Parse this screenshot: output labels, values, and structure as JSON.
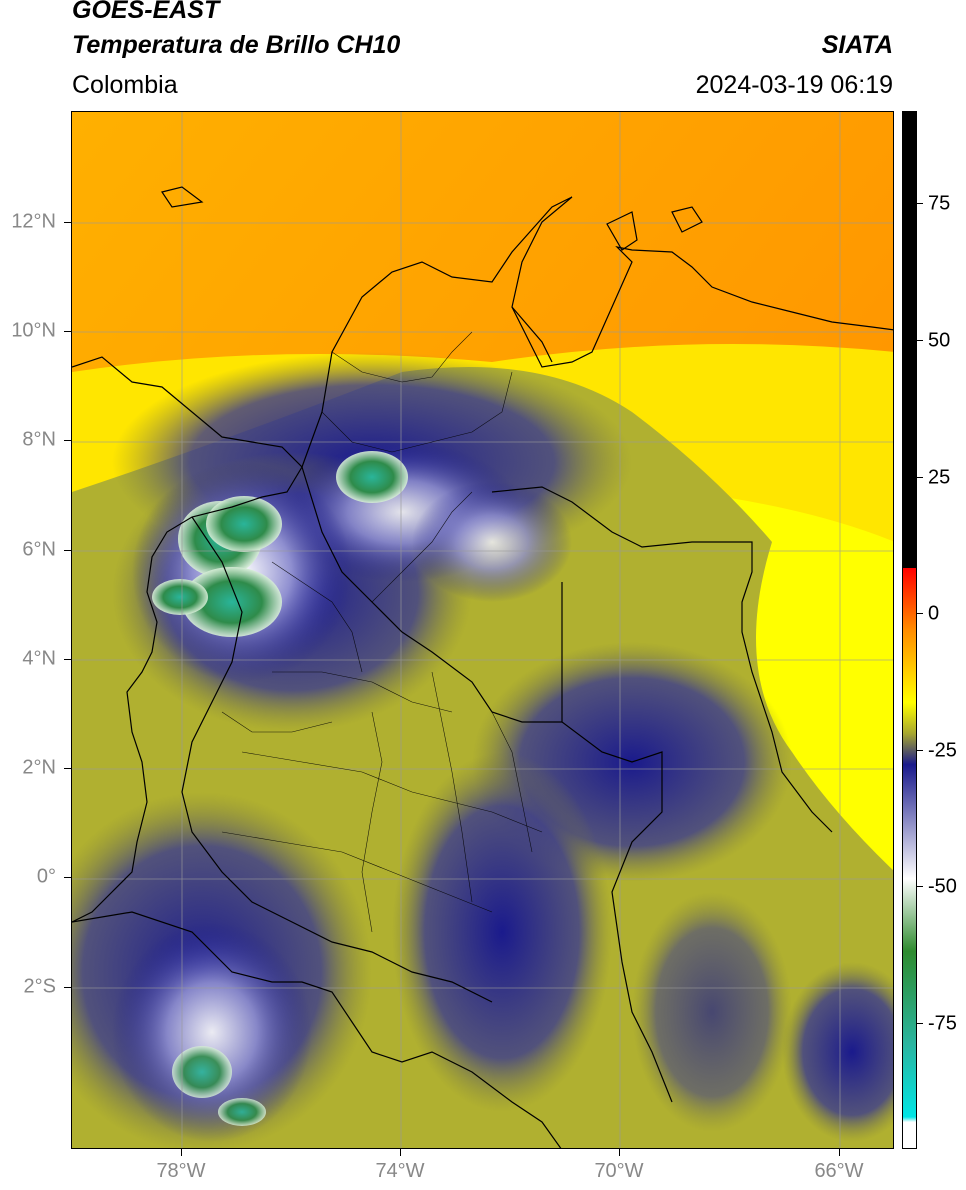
{
  "header": {
    "satellite": "GOES-EAST",
    "product": "Temperatura de Brillo CH10",
    "organization": "SIATA",
    "region": "Colombia",
    "timestamp": "2024-03-19 06:19"
  },
  "map": {
    "lat_labels": [
      "12°N",
      "10°N",
      "8°N",
      "6°N",
      "4°N",
      "2°N",
      "0°",
      "2°S"
    ],
    "lon_labels": [
      "78°W",
      "74°W",
      "70°W",
      "66°W"
    ],
    "grid": true
  },
  "colorbar": {
    "labels": [
      "75",
      "50",
      "25",
      "0",
      "-25",
      "-50",
      "-75"
    ],
    "colors": {
      "warm_top": "#000000",
      "red": "#ff0000",
      "orange": "#ff8c00",
      "yellow": "#ffff00",
      "olive": "#a6a62e",
      "navy": "#1a1a8c",
      "white": "#ffffff",
      "green": "#2e8b2e",
      "teal": "#2ab5a0",
      "cyan": "#00e5e5"
    }
  }
}
